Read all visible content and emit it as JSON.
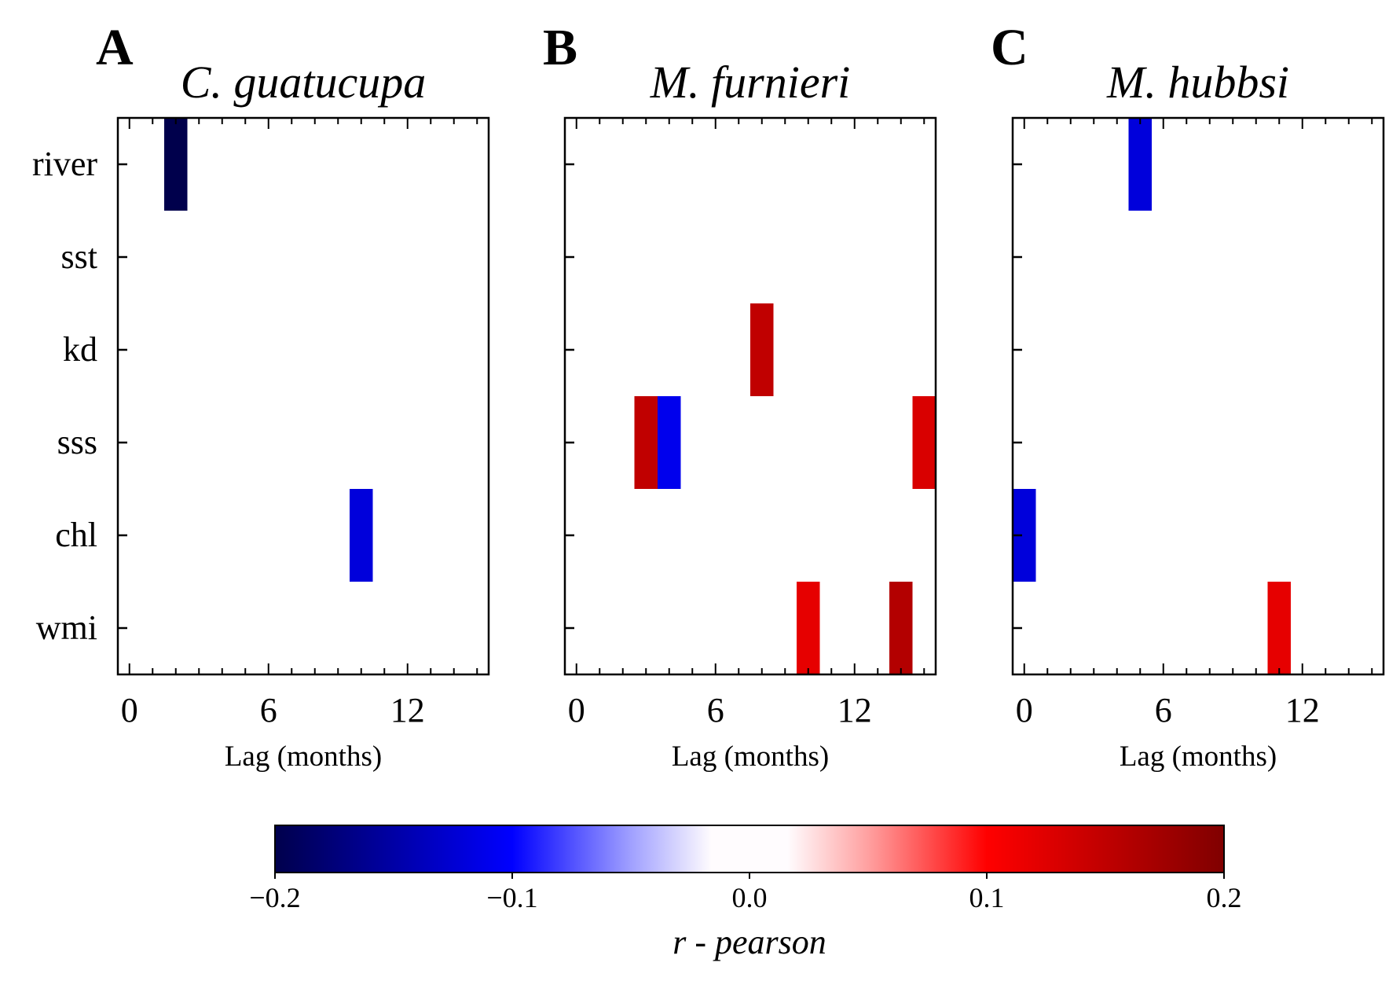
{
  "chart_data": {
    "type": "heatmap",
    "rows": [
      "river",
      "sst",
      "kd",
      "sss",
      "chl",
      "wmi"
    ],
    "x_ticks": [
      "0",
      "6",
      "12"
    ],
    "xlim": [
      -0.5,
      15.5
    ],
    "xlabel": "Lag (months)",
    "colorbar": {
      "label": "r - pearson",
      "range": [
        -0.2,
        0.2
      ],
      "ticks": [
        "−0.2",
        "−0.1",
        "0.0",
        "0.1",
        "0.2"
      ],
      "colormap": "seismic (white between -0.1 and 0.1)"
    },
    "panels": [
      {
        "letter": "A",
        "title": "C. guatucupa",
        "cells": [
          {
            "row": "river",
            "lag": 2,
            "r": -0.2
          },
          {
            "row": "chl",
            "lag": 10,
            "r": -0.12
          }
        ]
      },
      {
        "letter": "B",
        "title": "M. furnieri",
        "cells": [
          {
            "row": "kd",
            "lag": 8,
            "r": 0.15
          },
          {
            "row": "sss",
            "lag": 3,
            "r": 0.15
          },
          {
            "row": "sss",
            "lag": 4,
            "r": -0.11
          },
          {
            "row": "sss",
            "lag": 15,
            "r": 0.13
          },
          {
            "row": "wmi",
            "lag": 10,
            "r": 0.12
          },
          {
            "row": "wmi",
            "lag": 14,
            "r": 0.16
          }
        ]
      },
      {
        "letter": "C",
        "title": "M. hubbsi",
        "cells": [
          {
            "row": "river",
            "lag": 5,
            "r": -0.12
          },
          {
            "row": "chl",
            "lag": 0,
            "r": -0.12
          },
          {
            "row": "wmi",
            "lag": 11,
            "r": 0.12
          }
        ]
      }
    ]
  }
}
